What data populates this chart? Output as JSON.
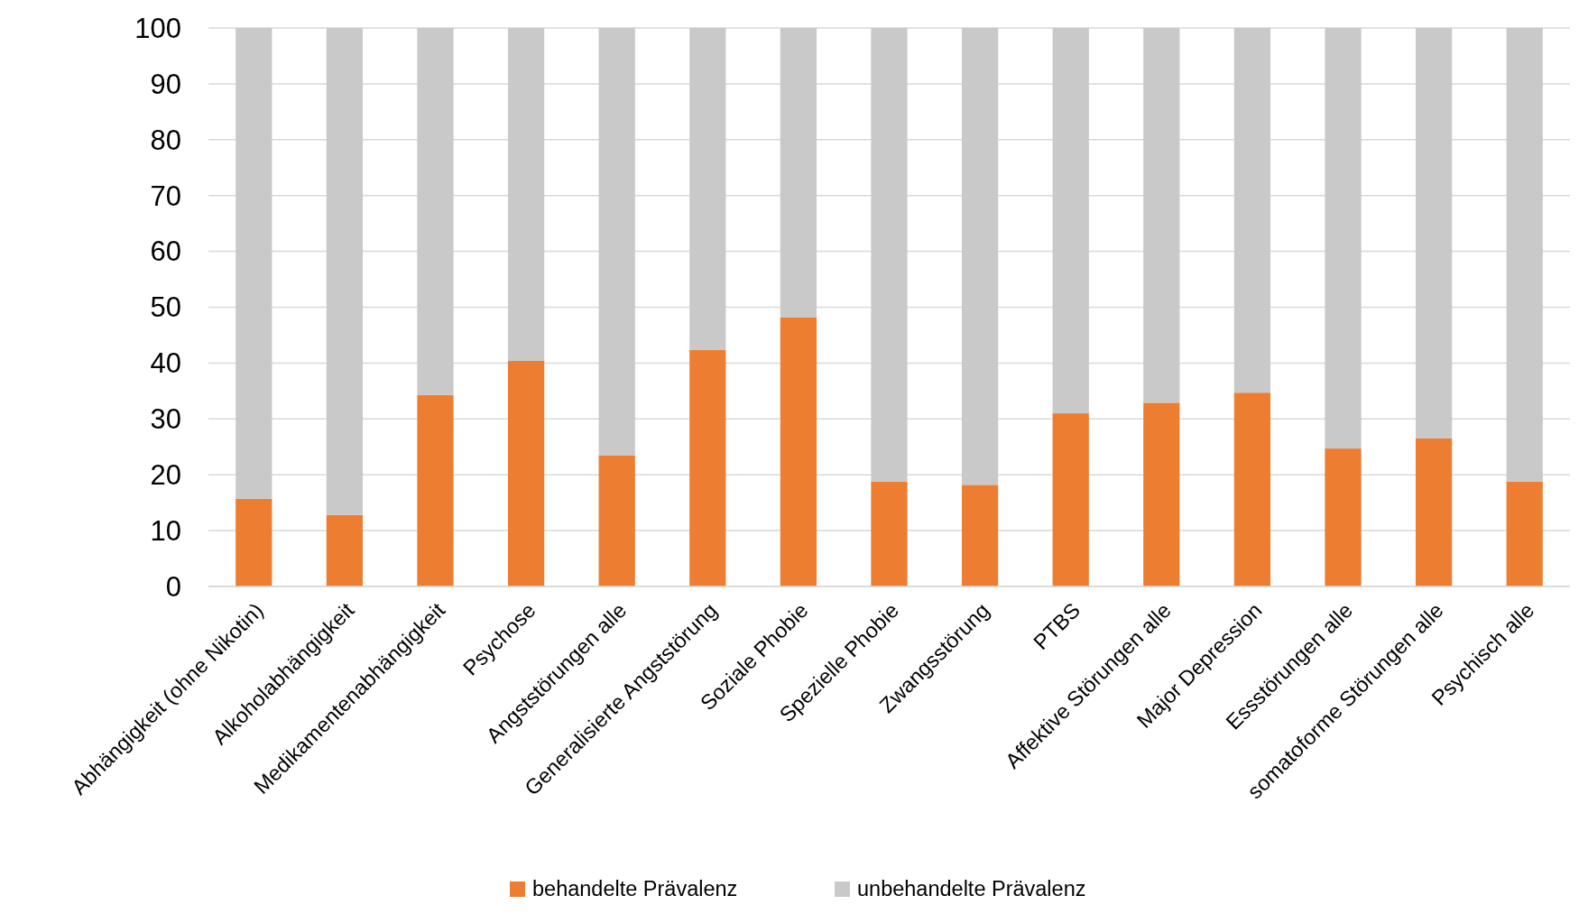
{
  "chart_data": {
    "type": "bar",
    "stacked": true,
    "categories": [
      "Abhängigkeit (ohne Nikotin)",
      "Alkoholabhängigkeit",
      "Medikamentenabhängigkeit",
      "Psychose",
      "Angststörungen alle",
      "Generalisierte Angststörung",
      "Soziale Phobie",
      "Spezielle Phobie",
      "Zwangsstörung",
      "PTBS",
      "Affektive Störungen alle",
      "Major Depression",
      "Essstörungen alle",
      "somatoforme Störungen alle",
      "Psychisch alle"
    ],
    "series": [
      {
        "name": "behandelte Prävalenz",
        "color": "#ed7d31",
        "values": [
          15.7,
          12.8,
          34.3,
          40.4,
          23.5,
          42.4,
          48.2,
          18.8,
          18.2,
          31.0,
          32.9,
          34.7,
          24.7,
          26.5,
          18.8
        ]
      },
      {
        "name": "unbehandelte Prävalenz",
        "color": "#c9c9c9",
        "values": [
          84.3,
          87.2,
          65.7,
          59.6,
          76.5,
          57.6,
          51.8,
          81.2,
          81.8,
          69.0,
          67.1,
          65.3,
          75.3,
          73.5,
          81.2
        ]
      }
    ],
    "ylim": [
      0,
      100
    ],
    "yticks": [
      0,
      10,
      20,
      30,
      40,
      50,
      60,
      70,
      80,
      90,
      100
    ],
    "grid": "y",
    "legend": "bottom"
  }
}
